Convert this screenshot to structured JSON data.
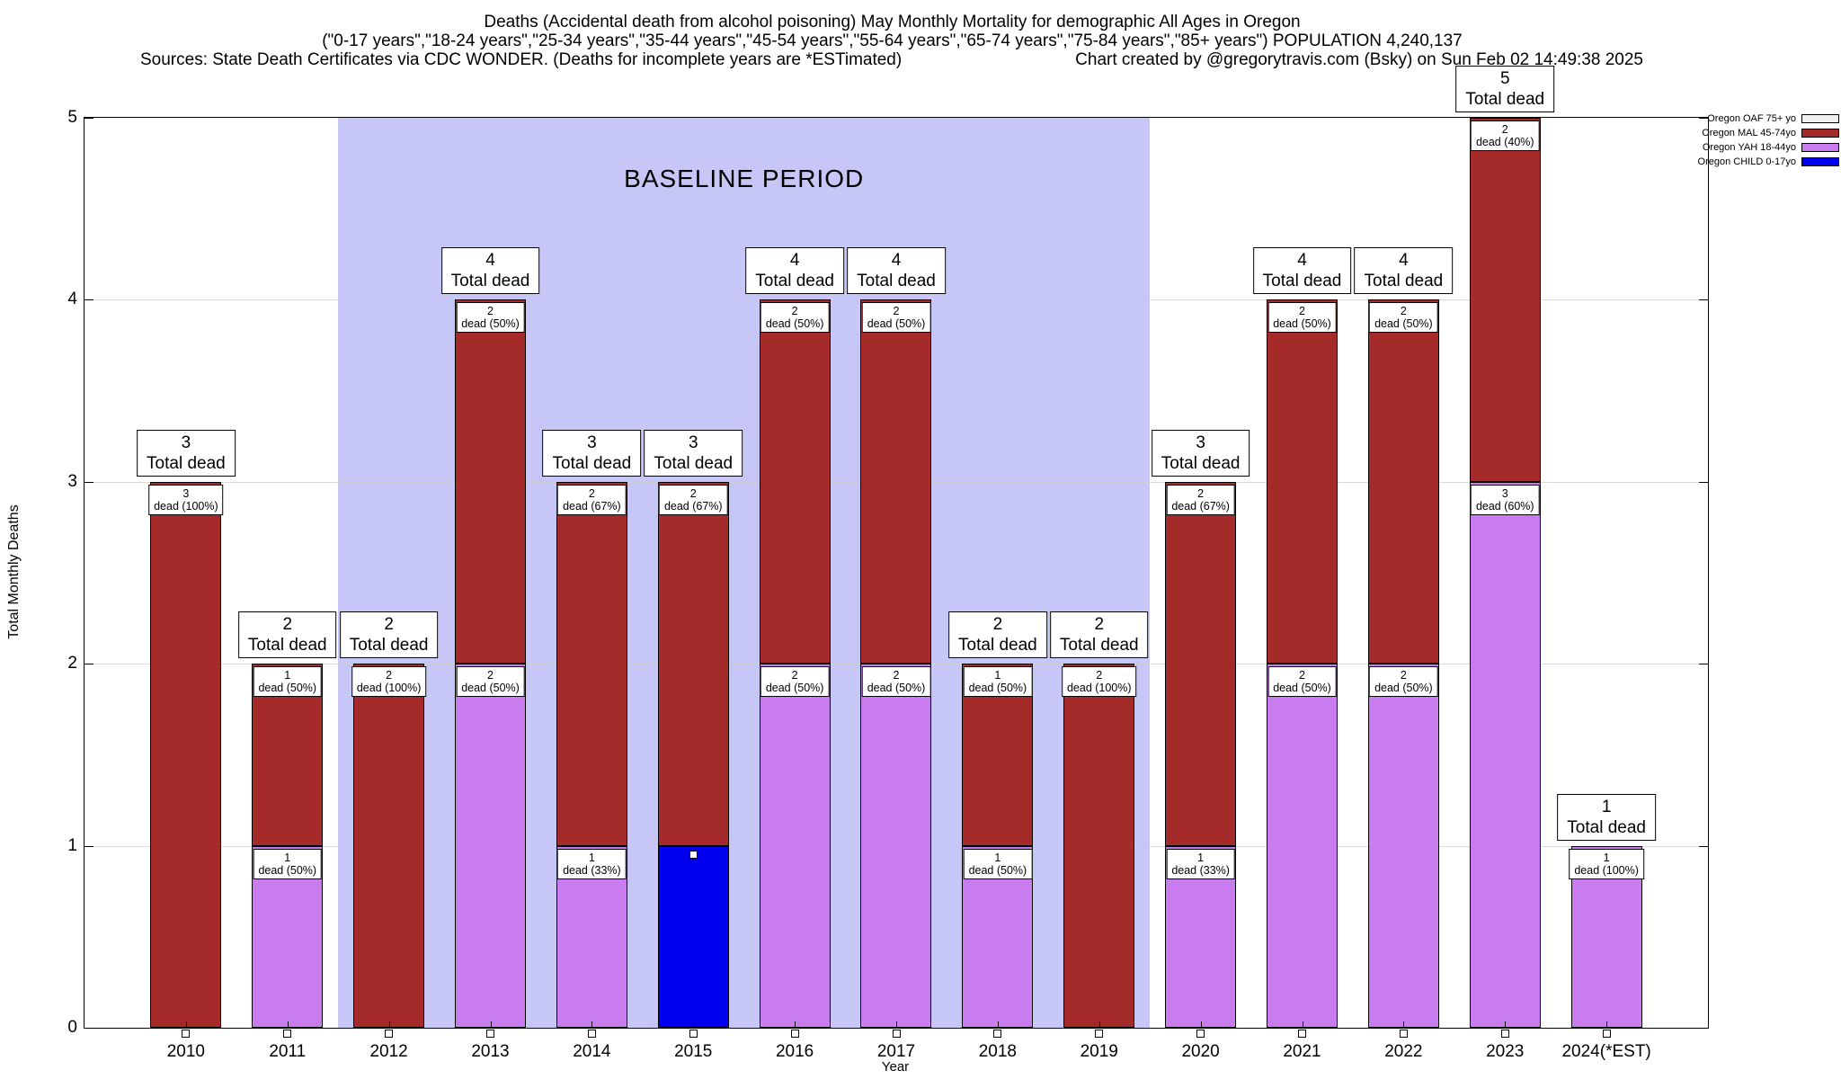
{
  "header": {
    "line1": "Deaths (Accidental death from alcohol poisoning) May Monthly Mortality for demographic All Ages in Oregon",
    "line2": "(\"0-17 years\",\"18-24 years\",\"25-34 years\",\"35-44 years\",\"45-54 years\",\"55-64 years\",\"65-74 years\",\"75-84 years\",\"85+ years\") POPULATION 4,240,137",
    "sources": "Sources: State Death Certificates via CDC WONDER. (Deaths for incomplete years are *ESTimated)",
    "credit": "Chart created by @gregorytravis.com (Bsky) on Sun Feb 02 14:49:38 2025"
  },
  "chart_data": {
    "type": "bar",
    "stacked": true,
    "xlabel": "Year",
    "ylabel": "Total Monthly Deaths",
    "ylim": [
      0,
      5
    ],
    "yticks": [
      0,
      1,
      2,
      3,
      4,
      5
    ],
    "x_range": [
      2009,
      2025
    ],
    "bar_width_years": 0.7,
    "grid": true,
    "categories": [
      "2010",
      "2011",
      "2012",
      "2013",
      "2014",
      "2015",
      "2016",
      "2017",
      "2018",
      "2019",
      "2020",
      "2021",
      "2022",
      "2023",
      "2024(*EST)"
    ],
    "totals": [
      3,
      2,
      2,
      4,
      3,
      3,
      4,
      4,
      2,
      2,
      3,
      4,
      4,
      5,
      1
    ],
    "total_label_suffix": "Total dead",
    "baseline_band": {
      "label": "BASELINE PERIOD",
      "x_from": 2011.5,
      "x_to": 2019.5,
      "color": "#c6c6f7"
    },
    "series": [
      {
        "name": "Oregon CHILD 0-17yo",
        "color": "#0000ee",
        "values": [
          0,
          0,
          0,
          0,
          0,
          1,
          0,
          0,
          0,
          0,
          0,
          0,
          0,
          0,
          0
        ]
      },
      {
        "name": "Oregon YAH 18-44yo",
        "color": "#c87cf0",
        "values": [
          0,
          1,
          0,
          2,
          1,
          0,
          2,
          2,
          1,
          0,
          1,
          2,
          2,
          3,
          1
        ]
      },
      {
        "name": "Oregon MAL 45-74yo",
        "color": "#a52a2a",
        "values": [
          3,
          1,
          2,
          2,
          2,
          2,
          2,
          2,
          1,
          2,
          2,
          2,
          2,
          2,
          0
        ]
      },
      {
        "name": "Oregon OAF 75+ yo",
        "color": "#f0f0f0",
        "values": [
          0,
          0,
          0,
          0,
          0,
          0,
          0,
          0,
          0,
          0,
          0,
          0,
          0,
          0,
          0
        ]
      }
    ],
    "segment_labels": [
      {
        "year": "2010",
        "at": 3,
        "count": "3",
        "note": "dead (100%)"
      },
      {
        "year": "2011",
        "at": 2,
        "count": "1",
        "note": "dead (50%)"
      },
      {
        "year": "2011",
        "at": 1,
        "count": "1",
        "note": "dead (50%)"
      },
      {
        "year": "2012",
        "at": 2,
        "count": "2",
        "note": "dead (100%)"
      },
      {
        "year": "2013",
        "at": 4,
        "count": "2",
        "note": "dead (50%)"
      },
      {
        "year": "2013",
        "at": 2,
        "count": "2",
        "note": "dead (50%)"
      },
      {
        "year": "2014",
        "at": 3,
        "count": "2",
        "note": "dead (67%)"
      },
      {
        "year": "2014",
        "at": 1,
        "count": "1",
        "note": "dead (33%)"
      },
      {
        "year": "2015",
        "at": 3,
        "count": "2",
        "note": "dead (67%)"
      },
      {
        "year": "2016",
        "at": 4,
        "count": "2",
        "note": "dead (50%)"
      },
      {
        "year": "2016",
        "at": 2,
        "count": "2",
        "note": "dead (50%)"
      },
      {
        "year": "2017",
        "at": 4,
        "count": "2",
        "note": "dead (50%)"
      },
      {
        "year": "2017",
        "at": 2,
        "count": "2",
        "note": "dead (50%)"
      },
      {
        "year": "2018",
        "at": 2,
        "count": "1",
        "note": "dead (50%)"
      },
      {
        "year": "2018",
        "at": 1,
        "count": "1",
        "note": "dead (50%)"
      },
      {
        "year": "2019",
        "at": 2,
        "count": "2",
        "note": "dead (100%)"
      },
      {
        "year": "2020",
        "at": 3,
        "count": "2",
        "note": "dead (67%)"
      },
      {
        "year": "2020",
        "at": 1,
        "count": "1",
        "note": "dead (33%)"
      },
      {
        "year": "2021",
        "at": 4,
        "count": "2",
        "note": "dead (50%)"
      },
      {
        "year": "2021",
        "at": 2,
        "count": "2",
        "note": "dead (50%)"
      },
      {
        "year": "2022",
        "at": 4,
        "count": "2",
        "note": "dead (50%)"
      },
      {
        "year": "2022",
        "at": 2,
        "count": "2",
        "note": "dead (50%)"
      },
      {
        "year": "2023",
        "at": 5,
        "count": "2",
        "note": "dead (40%)"
      },
      {
        "year": "2023",
        "at": 3,
        "count": "3",
        "note": "dead (60%)"
      },
      {
        "year": "2024(*EST)",
        "at": 1,
        "count": "1",
        "note": "dead (100%)"
      }
    ],
    "markers": {
      "zero_markers_all_years": true,
      "extra": [
        {
          "year": "2015",
          "value": 0.95
        }
      ]
    }
  },
  "legend": {
    "items": [
      {
        "label": "Oregon OAF 75+ yo",
        "color": "#f0f0f0"
      },
      {
        "label": "Oregon MAL 45-74yo",
        "color": "#a52a2a"
      },
      {
        "label": "Oregon YAH 18-44yo",
        "color": "#c87cf0"
      },
      {
        "label": "Oregon CHILD 0-17yo",
        "color": "#0000ee"
      }
    ]
  }
}
